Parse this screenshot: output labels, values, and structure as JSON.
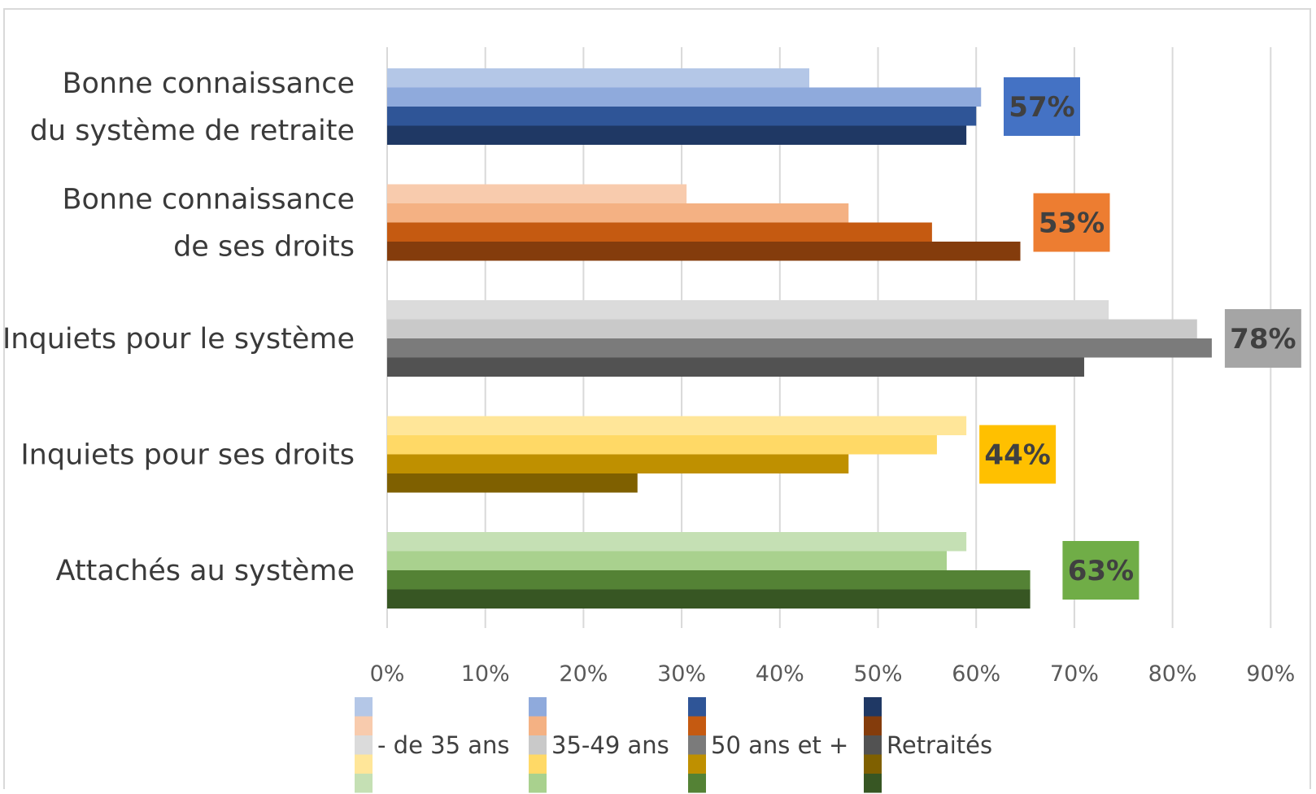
{
  "chart_data": {
    "type": "bar",
    "orientation": "horizontal",
    "title": "",
    "xlabel": "",
    "ylabel": "",
    "xlim": [
      0,
      90
    ],
    "x_ticks": [
      "0%",
      "10%",
      "20%",
      "30%",
      "40%",
      "50%",
      "60%",
      "70%",
      "80%",
      "90%"
    ],
    "grid": true,
    "legend_position": "bottom",
    "series_names": [
      "- de 35 ans",
      "35-49 ans",
      "50 ans et +",
      "Retraités"
    ],
    "categories": [
      {
        "label_lines": [
          "Bonne connaissance",
          "du système de retraite"
        ],
        "values": [
          43,
          60.5,
          60,
          59
        ],
        "total": 57,
        "total_label": "57%",
        "colors": [
          "#b4c7e7",
          "#8faadc",
          "#2f5597",
          "#1f3864"
        ],
        "total_color": "#4472c4"
      },
      {
        "label_lines": [
          "Bonne connaissance",
          "de ses droits"
        ],
        "values": [
          30.5,
          47,
          55.5,
          64.5
        ],
        "total": 53,
        "total_label": "53%",
        "colors": [
          "#f8cbad",
          "#f4b183",
          "#c55a11",
          "#843c0c"
        ],
        "total_color": "#ed7d31"
      },
      {
        "label_lines": [
          "Inquiets pour le système"
        ],
        "values": [
          73.5,
          82.5,
          84,
          71
        ],
        "total": 78,
        "total_label": "78%",
        "colors": [
          "#dbdbdb",
          "#c9c9c9",
          "#7b7b7b",
          "#525252"
        ],
        "total_color": "#a5a5a5"
      },
      {
        "label_lines": [
          "Inquiets pour ses droits"
        ],
        "values": [
          59,
          56,
          47,
          25.5
        ],
        "total": 44,
        "total_label": "44%",
        "colors": [
          "#ffe699",
          "#ffd966",
          "#bf9000",
          "#7f6000"
        ],
        "total_color": "#ffc000"
      },
      {
        "label_lines": [
          "Attachés au système"
        ],
        "values": [
          59,
          57,
          65.5,
          65.5
        ],
        "total": 63,
        "total_label": "63%",
        "colors": [
          "#c5e0b4",
          "#a9d18e",
          "#548235",
          "#375623"
        ],
        "total_color": "#70ad47"
      }
    ]
  }
}
